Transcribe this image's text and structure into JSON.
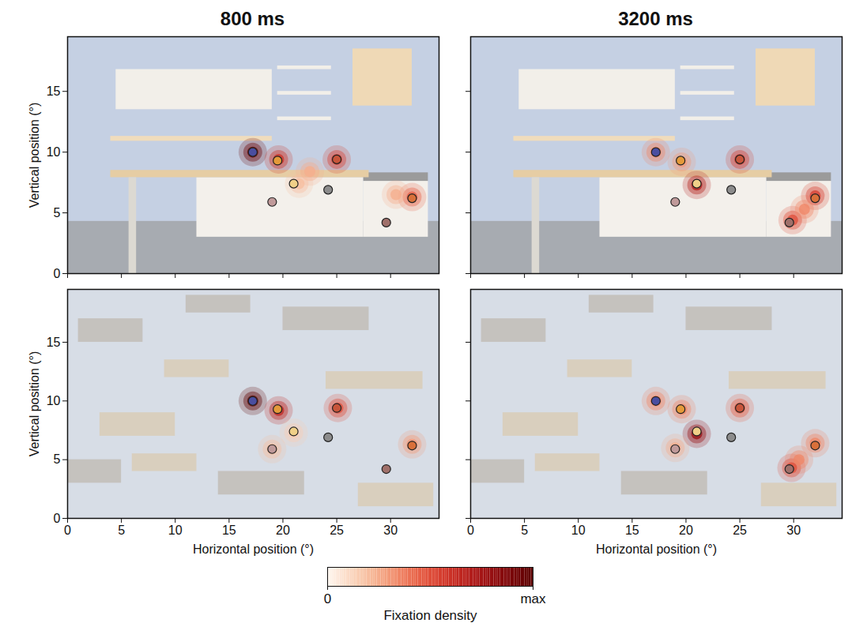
{
  "chart_data": [
    {
      "type": "heatmap",
      "title": "800 ms",
      "ylabel": "Vertical position (°)",
      "xlim": [
        0,
        34.5
      ],
      "ylim": [
        0,
        19.5
      ],
      "xticks": [
        0,
        5,
        10,
        15,
        20,
        25,
        30
      ],
      "yticks": [
        0,
        5,
        10,
        15
      ],
      "tick_labels": "y",
      "hotspots": {
        "x": [
          17.2,
          19.6,
          25.0,
          22.5,
          21.5,
          32.0,
          30.5
        ],
        "y": [
          10.0,
          9.4,
          9.4,
          8.4,
          7.4,
          6.3,
          6.5
        ],
        "density": [
          0.95,
          0.6,
          0.55,
          0.25,
          0.2,
          0.45,
          0.25
        ]
      },
      "objects": {
        "x": [
          17.2,
          19.5,
          25.0,
          21.0,
          24.2,
          19.0,
          32.0,
          29.6
        ],
        "y": [
          10.0,
          9.3,
          9.4,
          7.4,
          6.9,
          5.9,
          6.2,
          4.2
        ],
        "colors": [
          "#4a4ea0",
          "#e59a3a",
          "#c8553a",
          "#f0d088",
          "#8c8c8c",
          "#c09a9a",
          "#d9703a",
          "#a0706a"
        ]
      }
    },
    {
      "type": "heatmap",
      "title": "3200 ms",
      "xlim": [
        0,
        34.5
      ],
      "ylim": [
        0,
        19.5
      ],
      "xticks": [
        0,
        5,
        10,
        15,
        20,
        25,
        30
      ],
      "yticks": [
        0,
        5,
        10,
        15
      ],
      "tick_labels": false,
      "hotspots": {
        "x": [
          17.2,
          19.6,
          25.0,
          21.0,
          32.0,
          29.9,
          31.0
        ],
        "y": [
          10.0,
          9.2,
          9.4,
          7.3,
          6.4,
          4.4,
          5.3
        ],
        "density": [
          0.35,
          0.3,
          0.55,
          0.7,
          0.55,
          0.5,
          0.35
        ]
      },
      "objects": {
        "x": [
          17.2,
          19.5,
          25.0,
          21.0,
          24.2,
          19.0,
          32.0,
          29.6
        ],
        "y": [
          10.0,
          9.3,
          9.4,
          7.4,
          6.9,
          5.9,
          6.2,
          4.2
        ],
        "colors": [
          "#4a4ea0",
          "#e59a3a",
          "#c8553a",
          "#f0d088",
          "#8c8c8c",
          "#c09a9a",
          "#d9703a",
          "#a0706a"
        ]
      }
    },
    {
      "type": "heatmap",
      "xlabel": "Horizontal position (°)",
      "ylabel": "Vertical position (°)",
      "xlim": [
        0,
        34.5
      ],
      "ylim": [
        0,
        19.5
      ],
      "xticks": [
        0,
        5,
        10,
        15,
        20,
        25,
        30
      ],
      "yticks": [
        0,
        5,
        10,
        15
      ],
      "tick_labels": true,
      "hotspots": {
        "x": [
          17.2,
          19.6,
          25.1,
          21.0,
          32.0,
          19.0
        ],
        "y": [
          10.0,
          9.2,
          9.4,
          7.3,
          6.3,
          5.9
        ],
        "density": [
          1.0,
          0.65,
          0.5,
          0.15,
          0.3,
          0.2
        ]
      },
      "objects": {
        "x": [
          17.2,
          19.5,
          25.0,
          21.0,
          24.2,
          19.0,
          32.0,
          29.6
        ],
        "y": [
          10.0,
          9.3,
          9.4,
          7.4,
          6.9,
          5.9,
          6.2,
          4.2
        ],
        "colors": [
          "#4a4ea0",
          "#e59a3a",
          "#c8553a",
          "#f0d088",
          "#8c8c8c",
          "#c09a9a",
          "#d9703a",
          "#a0706a"
        ]
      }
    },
    {
      "type": "heatmap",
      "xlabel": "Horizontal position (°)",
      "xlim": [
        0,
        34.5
      ],
      "ylim": [
        0,
        19.5
      ],
      "xticks": [
        0,
        5,
        10,
        15,
        20,
        25,
        30
      ],
      "yticks": [
        0,
        5,
        10,
        15
      ],
      "tick_labels": "x",
      "hotspots": {
        "x": [
          17.2,
          19.6,
          25.0,
          21.0,
          32.0,
          29.8,
          30.5,
          19.0
        ],
        "y": [
          10.0,
          9.3,
          9.4,
          7.2,
          6.4,
          4.3,
          5.0,
          6.0
        ],
        "density": [
          0.35,
          0.35,
          0.45,
          0.8,
          0.35,
          0.5,
          0.35,
          0.25
        ]
      },
      "objects": {
        "x": [
          17.2,
          19.5,
          25.0,
          21.0,
          24.2,
          19.0,
          32.0,
          29.6
        ],
        "y": [
          10.0,
          9.3,
          9.4,
          7.4,
          6.9,
          5.9,
          6.2,
          4.2
        ],
        "colors": [
          "#4a4ea0",
          "#e59a3a",
          "#c8553a",
          "#f0d088",
          "#8c8c8c",
          "#c09a9a",
          "#d9703a",
          "#a0706a"
        ]
      }
    }
  ],
  "colorbar": {
    "label": "Fixation density",
    "range": [
      0,
      1
    ],
    "ticks": [
      {
        "value": 0,
        "label": "0"
      },
      {
        "value": 1,
        "label": "max"
      }
    ]
  }
}
